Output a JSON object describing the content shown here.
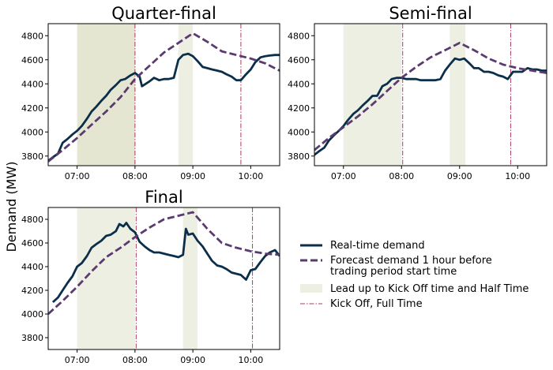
{
  "figure": {
    "ylabel": "Demand (MW)",
    "colors": {
      "realtime": "#0b2f4a",
      "forecast": "#5b3a70",
      "shade": "#e4e6d2",
      "kick": "#b03a5a"
    }
  },
  "legend": {
    "items": [
      {
        "key": "realtime",
        "lines": [
          "Real-time demand"
        ]
      },
      {
        "key": "forecast",
        "lines": [
          "Forecast demand 1 hour before",
          " trading period start time"
        ]
      },
      {
        "key": "shade",
        "lines": [
          "Lead up to Kick Off time and Half Time"
        ]
      },
      {
        "key": "kick",
        "lines": [
          "Kick Off, Full Time"
        ]
      }
    ]
  },
  "chart_data": [
    {
      "type": "line",
      "title": "Quarter-final",
      "xlim": [
        6.5,
        10.5
      ],
      "ylim": [
        3720,
        4900
      ],
      "x_ticks": [
        {
          "v": 7,
          "label": "07:00"
        },
        {
          "v": 8,
          "label": "08:00"
        },
        {
          "v": 9,
          "label": "09:00"
        },
        {
          "v": 10,
          "label": "10:00"
        }
      ],
      "y_ticks": [
        3800,
        4000,
        4200,
        4400,
        4600,
        4800
      ],
      "shaded": [
        [
          7.0,
          8.0
        ],
        [
          8.75,
          9.0
        ]
      ],
      "vlines": [
        8.0,
        9.83
      ],
      "series": [
        {
          "key": "realtime",
          "points": [
            [
              6.5,
              3760
            ],
            [
              6.58,
              3790
            ],
            [
              6.67,
              3820
            ],
            [
              6.75,
              3910
            ],
            [
              6.83,
              3940
            ],
            [
              6.92,
              3980
            ],
            [
              7.0,
              4010
            ],
            [
              7.08,
              4050
            ],
            [
              7.17,
              4110
            ],
            [
              7.25,
              4170
            ],
            [
              7.33,
              4210
            ],
            [
              7.42,
              4260
            ],
            [
              7.5,
              4300
            ],
            [
              7.58,
              4350
            ],
            [
              7.67,
              4390
            ],
            [
              7.75,
              4430
            ],
            [
              7.83,
              4440
            ],
            [
              7.92,
              4470
            ],
            [
              8.0,
              4490
            ],
            [
              8.08,
              4460
            ],
            [
              8.12,
              4380
            ],
            [
              8.25,
              4420
            ],
            [
              8.33,
              4450
            ],
            [
              8.42,
              4430
            ],
            [
              8.5,
              4440
            ],
            [
              8.58,
              4440
            ],
            [
              8.67,
              4450
            ],
            [
              8.75,
              4600
            ],
            [
              8.83,
              4640
            ],
            [
              8.92,
              4650
            ],
            [
              9.0,
              4630
            ],
            [
              9.08,
              4590
            ],
            [
              9.17,
              4540
            ],
            [
              9.25,
              4530
            ],
            [
              9.33,
              4520
            ],
            [
              9.42,
              4510
            ],
            [
              9.5,
              4500
            ],
            [
              9.58,
              4480
            ],
            [
              9.67,
              4460
            ],
            [
              9.75,
              4430
            ],
            [
              9.83,
              4430
            ],
            [
              9.92,
              4480
            ],
            [
              10.0,
              4520
            ],
            [
              10.08,
              4580
            ],
            [
              10.17,
              4620
            ],
            [
              10.25,
              4630
            ],
            [
              10.33,
              4635
            ],
            [
              10.42,
              4640
            ],
            [
              10.5,
              4640
            ]
          ]
        },
        {
          "key": "forecast",
          "points": [
            [
              6.5,
              3755
            ],
            [
              6.75,
              3850
            ],
            [
              7.0,
              3950
            ],
            [
              7.25,
              4060
            ],
            [
              7.5,
              4170
            ],
            [
              7.75,
              4290
            ],
            [
              8.0,
              4440
            ],
            [
              8.25,
              4550
            ],
            [
              8.5,
              4660
            ],
            [
              8.75,
              4740
            ],
            [
              9.0,
              4820
            ],
            [
              9.25,
              4750
            ],
            [
              9.5,
              4670
            ],
            [
              9.75,
              4640
            ],
            [
              10.0,
              4610
            ],
            [
              10.25,
              4570
            ],
            [
              10.5,
              4510
            ]
          ]
        }
      ]
    },
    {
      "type": "line",
      "title": "Semi-final",
      "xlim": [
        6.5,
        10.5
      ],
      "ylim": [
        3720,
        4900
      ],
      "x_ticks": [
        {
          "v": 7,
          "label": "07:00"
        },
        {
          "v": 8,
          "label": "08:00"
        },
        {
          "v": 9,
          "label": "09:00"
        },
        {
          "v": 10,
          "label": "10:00"
        }
      ],
      "y_ticks": [
        3800,
        4000,
        4200,
        4400,
        4600,
        4800
      ],
      "shaded": [
        [
          7.0,
          8.0
        ],
        [
          8.83,
          9.1
        ]
      ],
      "vlines": [
        8.02,
        9.88
      ],
      "series": [
        {
          "key": "realtime",
          "points": [
            [
              6.5,
              3810
            ],
            [
              6.58,
              3840
            ],
            [
              6.67,
              3870
            ],
            [
              6.75,
              3930
            ],
            [
              6.83,
              3970
            ],
            [
              6.92,
              4010
            ],
            [
              7.0,
              4050
            ],
            [
              7.08,
              4100
            ],
            [
              7.17,
              4150
            ],
            [
              7.25,
              4180
            ],
            [
              7.33,
              4220
            ],
            [
              7.42,
              4260
            ],
            [
              7.5,
              4300
            ],
            [
              7.58,
              4300
            ],
            [
              7.67,
              4380
            ],
            [
              7.75,
              4400
            ],
            [
              7.83,
              4440
            ],
            [
              7.92,
              4450
            ],
            [
              8.0,
              4450
            ],
            [
              8.08,
              4440
            ],
            [
              8.17,
              4440
            ],
            [
              8.25,
              4440
            ],
            [
              8.33,
              4430
            ],
            [
              8.42,
              4430
            ],
            [
              8.5,
              4430
            ],
            [
              8.58,
              4430
            ],
            [
              8.67,
              4440
            ],
            [
              8.75,
              4510
            ],
            [
              8.83,
              4560
            ],
            [
              8.92,
              4610
            ],
            [
              9.0,
              4600
            ],
            [
              9.08,
              4610
            ],
            [
              9.17,
              4570
            ],
            [
              9.25,
              4530
            ],
            [
              9.33,
              4530
            ],
            [
              9.42,
              4500
            ],
            [
              9.5,
              4500
            ],
            [
              9.58,
              4490
            ],
            [
              9.67,
              4470
            ],
            [
              9.75,
              4460
            ],
            [
              9.83,
              4440
            ],
            [
              9.92,
              4500
            ],
            [
              10.0,
              4500
            ],
            [
              10.08,
              4500
            ],
            [
              10.17,
              4530
            ],
            [
              10.25,
              4520
            ],
            [
              10.33,
              4520
            ],
            [
              10.42,
              4510
            ],
            [
              10.5,
              4510
            ]
          ]
        },
        {
          "key": "forecast",
          "points": [
            [
              6.5,
              3850
            ],
            [
              6.75,
              3950
            ],
            [
              7.0,
              4040
            ],
            [
              7.25,
              4130
            ],
            [
              7.5,
              4230
            ],
            [
              7.75,
              4340
            ],
            [
              8.0,
              4450
            ],
            [
              8.25,
              4540
            ],
            [
              8.5,
              4620
            ],
            [
              8.75,
              4680
            ],
            [
              9.0,
              4740
            ],
            [
              9.25,
              4680
            ],
            [
              9.5,
              4610
            ],
            [
              9.75,
              4560
            ],
            [
              10.0,
              4530
            ],
            [
              10.25,
              4510
            ],
            [
              10.5,
              4490
            ]
          ]
        }
      ]
    },
    {
      "type": "line",
      "title": "Final",
      "xlim": [
        6.5,
        10.5
      ],
      "ylim": [
        3700,
        4900
      ],
      "x_ticks": [
        {
          "v": 7,
          "label": "07:00"
        },
        {
          "v": 8,
          "label": "08:00"
        },
        {
          "v": 9,
          "label": "09:00"
        },
        {
          "v": 10,
          "label": "10:00"
        }
      ],
      "y_ticks": [
        3800,
        4000,
        4200,
        4400,
        4600,
        4800
      ],
      "shaded": [
        [
          7.0,
          8.0
        ],
        [
          8.83,
          9.08
        ]
      ],
      "vlines": [
        8.02,
        10.03
      ],
      "series": [
        {
          "key": "realtime",
          "points": [
            [
              6.58,
              4100
            ],
            [
              6.67,
              4140
            ],
            [
              6.75,
              4200
            ],
            [
              6.83,
              4260
            ],
            [
              6.92,
              4320
            ],
            [
              7.0,
              4400
            ],
            [
              7.08,
              4430
            ],
            [
              7.17,
              4490
            ],
            [
              7.25,
              4560
            ],
            [
              7.33,
              4590
            ],
            [
              7.42,
              4620
            ],
            [
              7.5,
              4660
            ],
            [
              7.58,
              4670
            ],
            [
              7.67,
              4700
            ],
            [
              7.73,
              4760
            ],
            [
              7.8,
              4740
            ],
            [
              7.85,
              4770
            ],
            [
              7.92,
              4720
            ],
            [
              8.0,
              4690
            ],
            [
              8.08,
              4610
            ],
            [
              8.17,
              4570
            ],
            [
              8.25,
              4540
            ],
            [
              8.33,
              4520
            ],
            [
              8.42,
              4520
            ],
            [
              8.5,
              4510
            ],
            [
              8.58,
              4500
            ],
            [
              8.67,
              4490
            ],
            [
              8.75,
              4480
            ],
            [
              8.83,
              4500
            ],
            [
              8.88,
              4720
            ],
            [
              8.92,
              4670
            ],
            [
              9.0,
              4680
            ],
            [
              9.08,
              4620
            ],
            [
              9.17,
              4570
            ],
            [
              9.25,
              4510
            ],
            [
              9.33,
              4450
            ],
            [
              9.42,
              4410
            ],
            [
              9.5,
              4400
            ],
            [
              9.58,
              4380
            ],
            [
              9.67,
              4350
            ],
            [
              9.75,
              4340
            ],
            [
              9.83,
              4330
            ],
            [
              9.92,
              4290
            ],
            [
              10.0,
              4370
            ],
            [
              10.08,
              4380
            ],
            [
              10.17,
              4440
            ],
            [
              10.25,
              4490
            ],
            [
              10.33,
              4520
            ],
            [
              10.42,
              4540
            ],
            [
              10.5,
              4490
            ]
          ]
        },
        {
          "key": "forecast",
          "points": [
            [
              6.5,
              4000
            ],
            [
              6.75,
              4110
            ],
            [
              7.0,
              4230
            ],
            [
              7.25,
              4360
            ],
            [
              7.5,
              4480
            ],
            [
              7.75,
              4560
            ],
            [
              8.0,
              4650
            ],
            [
              8.25,
              4730
            ],
            [
              8.5,
              4800
            ],
            [
              8.75,
              4830
            ],
            [
              9.0,
              4860
            ],
            [
              9.25,
              4720
            ],
            [
              9.5,
              4600
            ],
            [
              9.75,
              4560
            ],
            [
              10.0,
              4530
            ],
            [
              10.25,
              4510
            ],
            [
              10.5,
              4500
            ]
          ]
        }
      ]
    }
  ]
}
